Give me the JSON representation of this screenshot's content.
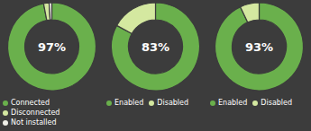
{
  "chart_data": [
    {
      "type": "donut",
      "categories": [
        "Connected",
        "Disconnected",
        "Not installed"
      ],
      "values": [
        97,
        2,
        1
      ],
      "colors": [
        "#6ab04c",
        "#d4e8a0",
        "#f0f0e8"
      ],
      "annotation": "97%",
      "legend": "bottom"
    },
    {
      "type": "donut",
      "categories": [
        "Enabled",
        "Disabled"
      ],
      "values": [
        83,
        17
      ],
      "colors": [
        "#6ab04c",
        "#d4e8a0"
      ],
      "annotation": "83%",
      "legend": "bottom"
    },
    {
      "type": "donut",
      "categories": [
        "Enabled",
        "Disabled"
      ],
      "values": [
        93,
        7
      ],
      "colors": [
        "#6ab04c",
        "#d4e8a0"
      ],
      "annotation": "93%",
      "legend": "bottom"
    }
  ]
}
